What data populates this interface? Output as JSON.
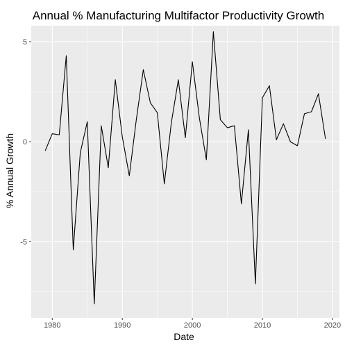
{
  "chart_data": {
    "type": "line",
    "title": "Annual % Manufacturing Multifactor Productivity Growth",
    "xlabel": "Date",
    "ylabel": "% Annual Growth",
    "x_ticks": [
      1980,
      1990,
      2000,
      2010,
      2020
    ],
    "y_ticks": [
      -5,
      0,
      5
    ],
    "xlim": [
      1977,
      2021
    ],
    "ylim": [
      -8.8,
      5.8
    ],
    "grid": true,
    "series_color": "#000000",
    "panel_background": "#ebebeb",
    "grid_color": "#ffffff",
    "x": [
      1979,
      1980,
      1981,
      1982,
      1983,
      1984,
      1985,
      1986,
      1987,
      1988,
      1989,
      1990,
      1991,
      1992,
      1993,
      1994,
      1995,
      1996,
      1997,
      1998,
      1999,
      2000,
      2001,
      2002,
      2003,
      2004,
      2005,
      2006,
      2007,
      2008,
      2009,
      2010,
      2011,
      2012,
      2013,
      2014,
      2015,
      2016,
      2017,
      2018,
      2019
    ],
    "y": [
      -0.45,
      0.4,
      0.35,
      4.3,
      -5.4,
      -0.55,
      1.0,
      -8.1,
      0.8,
      -1.3,
      3.1,
      0.25,
      -1.7,
      1.1,
      3.6,
      1.95,
      1.45,
      -2.1,
      0.95,
      3.1,
      0.2,
      4.0,
      1.2,
      -0.9,
      5.5,
      1.1,
      0.7,
      0.8,
      -3.1,
      0.6,
      -7.1,
      2.2,
      2.8,
      0.1,
      0.9,
      0.0,
      -0.2,
      1.4,
      1.5,
      2.4,
      0.15
    ]
  }
}
